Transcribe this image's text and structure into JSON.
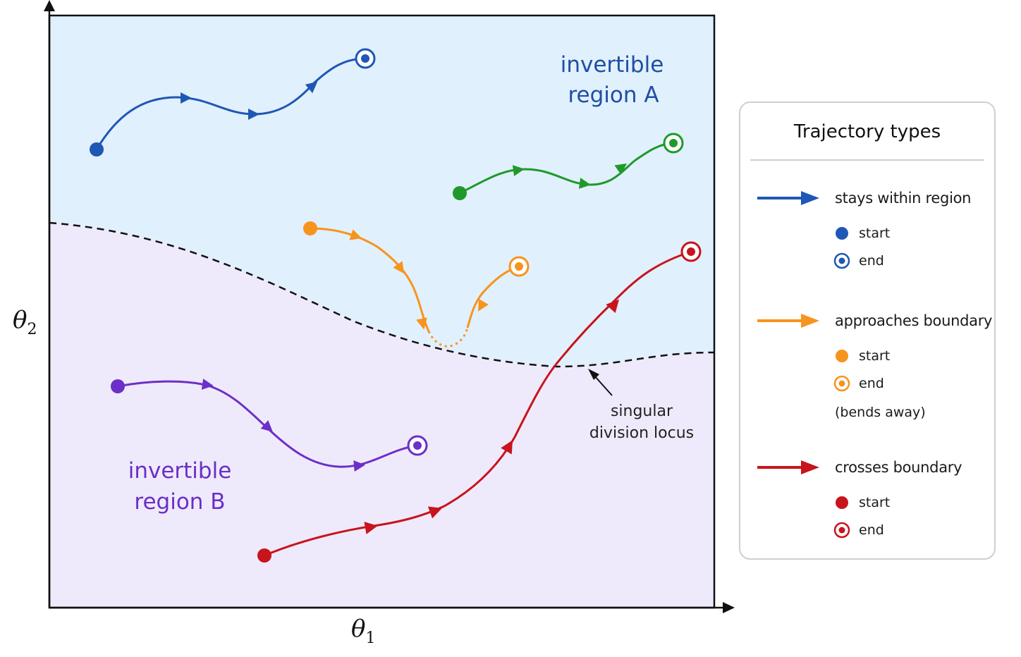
{
  "regions": {
    "a_label_line1": "invertible",
    "a_label_line2": "region A",
    "b_label_line1": "invertible",
    "b_label_line2": "region B",
    "a_color": "#1d4fa3",
    "b_color": "#6a2fc7",
    "a_fill": "#e1f0fd",
    "b_fill": "#efeafb"
  },
  "axes": {
    "x_symbol": "θ",
    "x_subscript": "1",
    "y_symbol": "θ",
    "y_subscript": "2"
  },
  "boundary": {
    "label_line1": "singular",
    "label_line2": "division locus"
  },
  "trajectory_colors": {
    "blue": "#1f57b4",
    "green": "#1f9a2a",
    "orange": "#f7941d",
    "purple": "#6c2fc8",
    "red": "#c8141c"
  },
  "legend": {
    "title": "Trajectory types",
    "groups": [
      {
        "label": "stays within region",
        "color": "#1f57b4",
        "start_label": "start",
        "end_label": "end",
        "note": ""
      },
      {
        "label": "approaches boundary",
        "color": "#f7941d",
        "start_label": "start",
        "end_label": "end",
        "note": "(bends away)"
      },
      {
        "label": "crosses boundary",
        "color": "#c8141c",
        "start_label": "start",
        "end_label": "end",
        "note": ""
      }
    ]
  }
}
